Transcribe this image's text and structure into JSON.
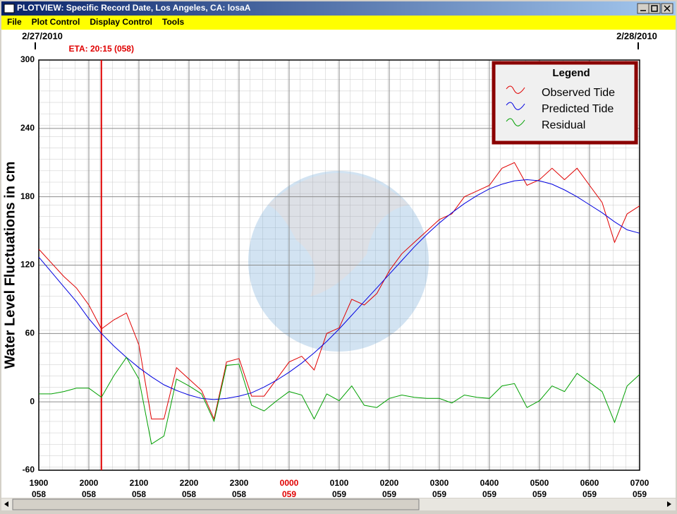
{
  "window": {
    "title": "PLOTVIEW: Specific Record Date, Los Angeles, CA: losaA",
    "menu": [
      "File",
      "Plot Control",
      "Display Control",
      "Tools"
    ]
  },
  "chart_data": {
    "type": "line",
    "ylabel": "Water Level Fluctuations in cm",
    "date_left": "2/27/2010",
    "date_right": "2/28/2010",
    "eta": {
      "x": 1.25,
      "label": "ETA: 20:15 (058)",
      "color": "#e00000"
    },
    "legend_title": "Legend",
    "legend_position": "upper right",
    "grid": true,
    "xlim": [
      0,
      12
    ],
    "xticks": [
      {
        "value": 0,
        "label": "1900",
        "day": "058"
      },
      {
        "value": 1,
        "label": "2000",
        "day": "058"
      },
      {
        "value": 2,
        "label": "2100",
        "day": "058"
      },
      {
        "value": 3,
        "label": "2200",
        "day": "058"
      },
      {
        "value": 4,
        "label": "2300",
        "day": "058"
      },
      {
        "value": 5,
        "label": "0000",
        "day": "059",
        "color": "#e00000"
      },
      {
        "value": 6,
        "label": "0100",
        "day": "059"
      },
      {
        "value": 7,
        "label": "0200",
        "day": "059"
      },
      {
        "value": 8,
        "label": "0300",
        "day": "059"
      },
      {
        "value": 9,
        "label": "0400",
        "day": "059"
      },
      {
        "value": 10,
        "label": "0500",
        "day": "059"
      },
      {
        "value": 11,
        "label": "0600",
        "day": "059"
      },
      {
        "value": 12,
        "label": "0700",
        "day": "059"
      }
    ],
    "ylim": [
      -60,
      300
    ],
    "yticks": [
      -60,
      0,
      60,
      120,
      180,
      240,
      300
    ],
    "x": [
      0,
      0.25,
      0.5,
      0.75,
      1,
      1.25,
      1.5,
      1.75,
      2,
      2.25,
      2.5,
      2.75,
      3,
      3.25,
      3.5,
      3.75,
      4,
      4.25,
      4.5,
      4.75,
      5,
      5.25,
      5.5,
      5.75,
      6,
      6.25,
      6.5,
      6.75,
      7,
      7.25,
      7.5,
      7.75,
      8,
      8.25,
      8.5,
      8.75,
      9,
      9.25,
      9.5,
      9.75,
      10,
      10.25,
      10.5,
      10.75,
      11,
      11.25,
      11.5,
      11.75,
      12
    ],
    "series": [
      {
        "name": "Observed Tide",
        "color": "#e00000",
        "values": [
          134,
          122,
          110,
          100,
          85,
          64,
          72,
          78,
          50,
          -15,
          -15,
          30,
          20,
          10,
          -15,
          35,
          38,
          5,
          5,
          20,
          35,
          40,
          28,
          60,
          65,
          90,
          85,
          95,
          115,
          130,
          140,
          150,
          160,
          165,
          180,
          185,
          190,
          205,
          210,
          190,
          195,
          205,
          195,
          205,
          190,
          175,
          140,
          165,
          172
        ]
      },
      {
        "name": "Predicted Tide",
        "color": "#0000e0",
        "values": [
          127,
          114,
          101,
          88,
          73,
          60,
          49,
          39,
          30,
          22,
          15,
          10,
          6,
          3,
          2,
          3,
          5,
          8,
          13,
          19,
          26,
          34,
          43,
          53,
          64,
          76,
          88,
          100,
          112,
          124,
          136,
          147,
          157,
          166,
          174,
          181,
          187,
          191,
          194,
          195,
          194,
          191,
          186,
          180,
          173,
          166,
          158,
          151,
          148
        ]
      },
      {
        "name": "Residual",
        "color": "#00a000",
        "values": [
          7,
          7,
          9,
          12,
          12,
          4,
          23,
          39,
          20,
          -37,
          -30,
          20,
          14,
          7,
          -17,
          32,
          33,
          -3,
          -8,
          1,
          9,
          6,
          -15,
          7,
          1,
          14,
          -3,
          -5,
          3,
          6,
          4,
          3,
          3,
          -1,
          6,
          4,
          3,
          14,
          16,
          -5,
          1,
          14,
          9,
          25,
          17,
          9,
          -18,
          14,
          24
        ]
      }
    ]
  }
}
